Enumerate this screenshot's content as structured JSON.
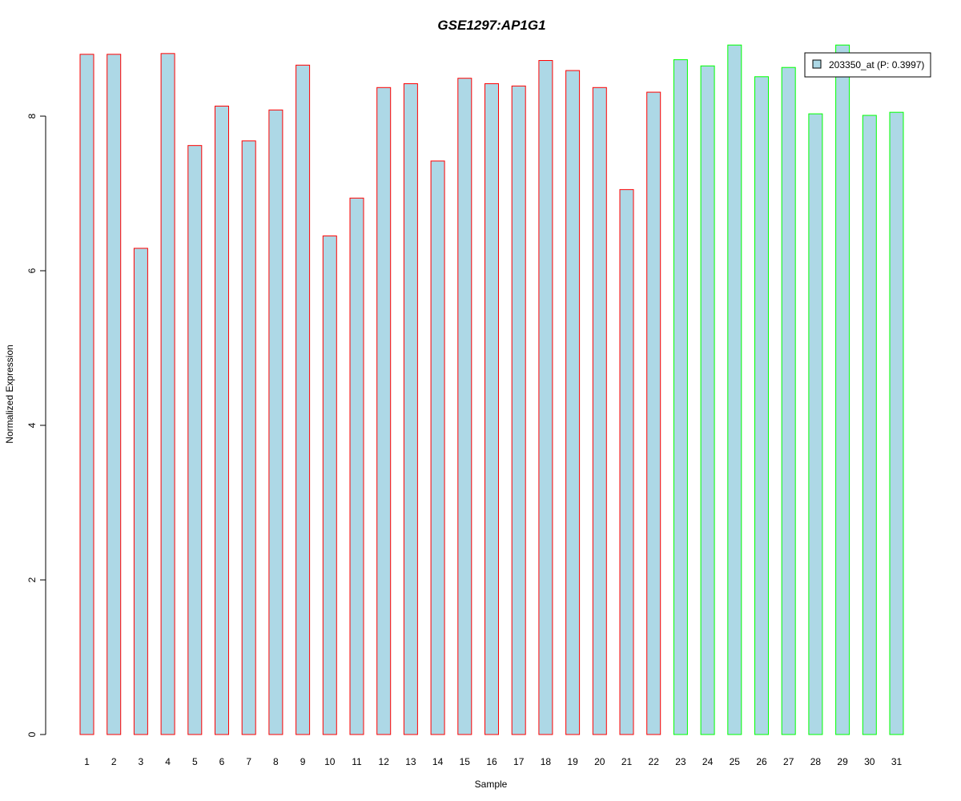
{
  "chart_data": {
    "type": "bar",
    "title": "GSE1297:AP1G1",
    "xlabel": "Sample",
    "ylabel": "Normalized Expression",
    "categories": [
      "1",
      "2",
      "3",
      "4",
      "5",
      "6",
      "7",
      "8",
      "9",
      "10",
      "11",
      "12",
      "13",
      "14",
      "15",
      "16",
      "17",
      "18",
      "19",
      "20",
      "21",
      "22",
      "23",
      "24",
      "25",
      "26",
      "27",
      "28",
      "29",
      "30",
      "31"
    ],
    "values": [
      8.8,
      8.8,
      6.29,
      8.81,
      7.62,
      8.13,
      7.68,
      8.08,
      8.66,
      6.45,
      6.94,
      8.37,
      8.42,
      7.42,
      8.49,
      8.42,
      8.39,
      8.72,
      8.59,
      8.37,
      7.05,
      8.31,
      8.73,
      8.65,
      8.92,
      8.51,
      8.63,
      8.03,
      8.92,
      8.01,
      8.05
    ],
    "groups": [
      1,
      1,
      1,
      1,
      1,
      1,
      1,
      1,
      1,
      1,
      1,
      1,
      1,
      1,
      1,
      1,
      1,
      1,
      1,
      1,
      1,
      1,
      2,
      2,
      2,
      2,
      2,
      2,
      2,
      2,
      2
    ],
    "yticks": [
      0,
      2,
      4,
      6,
      8
    ],
    "ylim": [
      0,
      9.0
    ],
    "grid": false,
    "legend": {
      "position": "top-right",
      "entries": [
        "203350_at (P: 0.3997)"
      ]
    },
    "colors": {
      "title": "#0000cc",
      "bar_fill": "#add8e6",
      "group1_border": "#ff0000",
      "group2_border": "#00ff00",
      "axis": "#000000"
    }
  }
}
